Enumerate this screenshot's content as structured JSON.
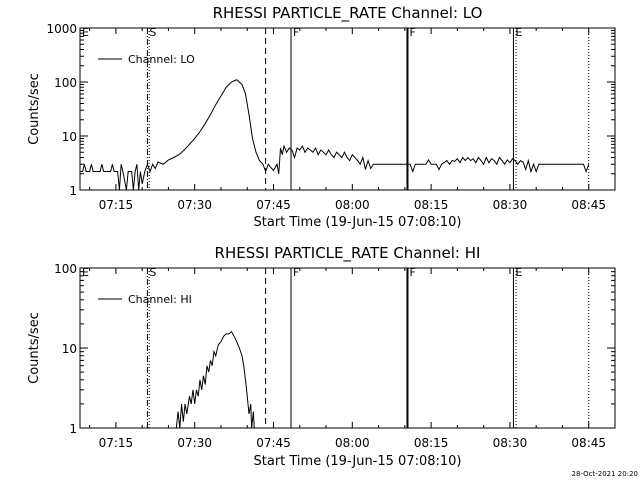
{
  "timestamp": "28-Oct-2021 20:20",
  "chart_data": [
    {
      "type": "line",
      "title": "RHESSI PARTICLE_RATE Channel: LO",
      "xlabel": "Start Time (19-Jun-15 07:08:10)",
      "ylabel": "Counts/sec",
      "yscale": "log",
      "xlim": [
        "07:08:10",
        "08:50:00"
      ],
      "ylim": [
        1,
        1000
      ],
      "xticks": [
        "07:15",
        "07:30",
        "07:45",
        "08:00",
        "08:15",
        "08:30",
        "08:45"
      ],
      "yticks": [
        "1",
        "10",
        "100",
        "1000"
      ],
      "legend": {
        "position": "top-left",
        "entries": [
          "Channel: LO"
        ]
      },
      "flag_markers": [
        {
          "label": "E",
          "time": "07:08:10",
          "style": "none"
        },
        {
          "label": "S",
          "time": "07:21:00",
          "style": "dash-dot"
        },
        {
          "label": "",
          "time": "07:21:20",
          "style": "dotted"
        },
        {
          "label": "",
          "time": "07:43:30",
          "style": "dashed"
        },
        {
          "label": "F",
          "time": "07:48:20",
          "style": "solid"
        },
        {
          "label": "F",
          "time": "08:10:30",
          "style": "solid-thick"
        },
        {
          "label": "E",
          "time": "08:30:40",
          "style": "solid-thin"
        },
        {
          "label": "",
          "time": "08:31:10",
          "style": "dotted"
        },
        {
          "label": "",
          "time": "08:45:00",
          "style": "dotted"
        }
      ],
      "series": [
        {
          "name": "Channel: LO",
          "points": [
            [
              "07:08:10",
              2.2
            ],
            [
              "07:08:40",
              2.2
            ],
            [
              "07:09:00",
              3
            ],
            [
              "07:09:20",
              2.2
            ],
            [
              "07:10:00",
              2.2
            ],
            [
              "07:10:20",
              3
            ],
            [
              "07:10:40",
              2.2
            ],
            [
              "07:11:30",
              2.2
            ],
            [
              "07:12:00",
              2.2
            ],
            [
              "07:12:20",
              3
            ],
            [
              "07:12:40",
              2.2
            ],
            [
              "07:13:30",
              2.2
            ],
            [
              "07:14:00",
              2.2
            ],
            [
              "07:14:20",
              3
            ],
            [
              "07:14:40",
              2.2
            ],
            [
              "07:15:20",
              2.2
            ],
            [
              "07:15:40",
              1
            ],
            [
              "07:16:00",
              3
            ],
            [
              "07:16:20",
              2.2
            ],
            [
              "07:17:00",
              1
            ],
            [
              "07:17:20",
              2.2
            ],
            [
              "07:18:00",
              2.2
            ],
            [
              "07:18:20",
              1
            ],
            [
              "07:18:40",
              2.2
            ],
            [
              "07:19:00",
              3
            ],
            [
              "07:19:20",
              1
            ],
            [
              "07:19:40",
              2.2
            ],
            [
              "07:20:00",
              1.3
            ],
            [
              "07:20:30",
              2.2
            ],
            [
              "07:21:00",
              3
            ],
            [
              "07:21:30",
              2.2
            ],
            [
              "07:22:00",
              3
            ],
            [
              "07:22:30",
              2.5
            ],
            [
              "07:23:00",
              3.3
            ],
            [
              "07:24:00",
              3
            ],
            [
              "07:25:00",
              3.6
            ],
            [
              "07:26:00",
              4
            ],
            [
              "07:27:00",
              4.5
            ],
            [
              "07:28:00",
              5.5
            ],
            [
              "07:29:00",
              7
            ],
            [
              "07:30:00",
              9
            ],
            [
              "07:31:00",
              12
            ],
            [
              "07:32:00",
              17
            ],
            [
              "07:33:00",
              25
            ],
            [
              "07:34:00",
              38
            ],
            [
              "07:35:00",
              55
            ],
            [
              "07:36:00",
              80
            ],
            [
              "07:37:00",
              100
            ],
            [
              "07:38:00",
              110
            ],
            [
              "07:39:00",
              90
            ],
            [
              "07:39:40",
              60
            ],
            [
              "07:40:20",
              25
            ],
            [
              "07:41:00",
              9
            ],
            [
              "07:41:40",
              5
            ],
            [
              "07:42:20",
              3.5
            ],
            [
              "07:43:00",
              3
            ],
            [
              "07:43:30",
              2.2
            ],
            [
              "07:44:00",
              3
            ],
            [
              "07:44:30",
              2.6
            ],
            [
              "07:45:00",
              2.3
            ],
            [
              "07:45:40",
              3
            ],
            [
              "07:46:00",
              2
            ],
            [
              "07:46:20",
              6
            ],
            [
              "07:46:40",
              4.5
            ],
            [
              "07:47:00",
              6.5
            ],
            [
              "07:47:30",
              5
            ],
            [
              "07:48:00",
              6
            ],
            [
              "07:48:30",
              5.5
            ],
            [
              "07:49:00",
              4
            ],
            [
              "07:49:30",
              6
            ],
            [
              "07:50:00",
              5.5
            ],
            [
              "07:50:30",
              6.5
            ],
            [
              "07:51:00",
              5
            ],
            [
              "07:51:30",
              6
            ],
            [
              "07:52:00",
              5.5
            ],
            [
              "07:52:30",
              5
            ],
            [
              "07:53:00",
              6
            ],
            [
              "07:53:30",
              4.5
            ],
            [
              "07:54:00",
              5.5
            ],
            [
              "07:54:30",
              5
            ],
            [
              "07:55:00",
              4.5
            ],
            [
              "07:55:30",
              5.5
            ],
            [
              "07:56:00",
              4.5
            ],
            [
              "07:56:30",
              4
            ],
            [
              "07:57:00",
              5
            ],
            [
              "07:57:30",
              4.5
            ],
            [
              "07:58:00",
              4
            ],
            [
              "07:58:30",
              5
            ],
            [
              "07:59:00",
              4
            ],
            [
              "07:59:30",
              3.5
            ],
            [
              "08:00:00",
              4.5
            ],
            [
              "08:00:30",
              4
            ],
            [
              "08:01:00",
              3.5
            ],
            [
              "08:01:30",
              3
            ],
            [
              "08:02:00",
              4
            ],
            [
              "08:02:30",
              2.4
            ],
            [
              "08:03:00",
              3.5
            ],
            [
              "08:03:30",
              2.5
            ],
            [
              "08:04:00",
              3
            ],
            [
              "08:05:00",
              3
            ],
            [
              "08:06:00",
              3
            ],
            [
              "08:07:00",
              3
            ],
            [
              "08:08:00",
              3
            ],
            [
              "08:09:00",
              3
            ],
            [
              "08:10:00",
              3
            ],
            [
              "08:11:00",
              3
            ],
            [
              "08:11:30",
              2.2
            ],
            [
              "08:12:00",
              3
            ],
            [
              "08:13:00",
              3
            ],
            [
              "08:14:00",
              3
            ],
            [
              "08:14:30",
              3.6
            ],
            [
              "08:15:00",
              3
            ],
            [
              "08:16:00",
              3
            ],
            [
              "08:16:30",
              2.4
            ],
            [
              "08:17:00",
              3
            ],
            [
              "08:18:00",
              3.5
            ],
            [
              "08:18:30",
              3
            ],
            [
              "08:19:00",
              3.5
            ],
            [
              "08:19:30",
              3.4
            ],
            [
              "08:20:00",
              3.8
            ],
            [
              "08:20:30",
              3.2
            ],
            [
              "08:21:00",
              4
            ],
            [
              "08:21:30",
              3.5
            ],
            [
              "08:22:00",
              4
            ],
            [
              "08:22:30",
              3.5
            ],
            [
              "08:23:00",
              3.8
            ],
            [
              "08:23:30",
              3.2
            ],
            [
              "08:24:00",
              4
            ],
            [
              "08:24:30",
              3.5
            ],
            [
              "08:25:00",
              3
            ],
            [
              "08:25:30",
              4
            ],
            [
              "08:26:00",
              3.2
            ],
            [
              "08:26:30",
              3.8
            ],
            [
              "08:27:00",
              3.5
            ],
            [
              "08:27:30",
              3
            ],
            [
              "08:28:00",
              4
            ],
            [
              "08:28:30",
              3.5
            ],
            [
              "08:29:00",
              3
            ],
            [
              "08:29:30",
              3.6
            ],
            [
              "08:30:00",
              3.2
            ],
            [
              "08:30:30",
              3.8
            ],
            [
              "08:31:00",
              3.5
            ],
            [
              "08:31:30",
              3
            ],
            [
              "08:32:00",
              3.5
            ],
            [
              "08:32:30",
              3.3
            ],
            [
              "08:33:00",
              2.4
            ],
            [
              "08:33:30",
              3.5
            ],
            [
              "08:34:00",
              2.2
            ],
            [
              "08:34:30",
              3
            ],
            [
              "08:35:00",
              2.2
            ],
            [
              "08:35:30",
              3
            ],
            [
              "08:36:00",
              3
            ],
            [
              "08:37:00",
              3
            ],
            [
              "08:38:00",
              3
            ],
            [
              "08:39:00",
              3
            ],
            [
              "08:40:00",
              3
            ],
            [
              "08:41:00",
              3
            ],
            [
              "08:42:00",
              3
            ],
            [
              "08:43:00",
              3
            ],
            [
              "08:44:00",
              3
            ],
            [
              "08:44:30",
              2.2
            ],
            [
              "08:45:00",
              3
            ]
          ]
        }
      ]
    },
    {
      "type": "line",
      "title": "RHESSI PARTICLE_RATE Channel: HI",
      "xlabel": "Start Time (19-Jun-15 07:08:10)",
      "ylabel": "Counts/sec",
      "yscale": "log",
      "xlim": [
        "07:08:10",
        "08:50:00"
      ],
      "ylim": [
        1,
        100
      ],
      "xticks": [
        "07:15",
        "07:30",
        "07:45",
        "08:00",
        "08:15",
        "08:30",
        "08:45"
      ],
      "yticks": [
        "1",
        "10",
        "100"
      ],
      "legend": {
        "position": "top-left",
        "entries": [
          "Channel: HI"
        ]
      },
      "flag_markers": [
        {
          "label": "E",
          "time": "07:08:10",
          "style": "none"
        },
        {
          "label": "S",
          "time": "07:21:00",
          "style": "dash-dot"
        },
        {
          "label": "",
          "time": "07:21:20",
          "style": "dotted"
        },
        {
          "label": "",
          "time": "07:43:30",
          "style": "dashed"
        },
        {
          "label": "F",
          "time": "07:48:20",
          "style": "solid"
        },
        {
          "label": "F",
          "time": "08:10:30",
          "style": "solid-thick"
        },
        {
          "label": "E",
          "time": "08:30:40",
          "style": "solid-thin"
        },
        {
          "label": "",
          "time": "08:31:10",
          "style": "dotted"
        },
        {
          "label": "",
          "time": "08:45:00",
          "style": "dotted"
        }
      ],
      "series": [
        {
          "name": "Channel: HI",
          "points": [
            [
              "07:26:30",
              1
            ],
            [
              "07:26:50",
              1.6
            ],
            [
              "07:27:10",
              1
            ],
            [
              "07:27:30",
              2
            ],
            [
              "07:27:50",
              1.2
            ],
            [
              "07:28:10",
              2
            ],
            [
              "07:28:30",
              1.5
            ],
            [
              "07:29:00",
              2.5
            ],
            [
              "07:29:20",
              2
            ],
            [
              "07:29:40",
              3
            ],
            [
              "07:30:00",
              2
            ],
            [
              "07:30:20",
              3
            ],
            [
              "07:30:40",
              2.5
            ],
            [
              "07:31:00",
              4
            ],
            [
              "07:31:20",
              3
            ],
            [
              "07:31:40",
              4.5
            ],
            [
              "07:32:00",
              3.5
            ],
            [
              "07:32:20",
              6
            ],
            [
              "07:32:40",
              5
            ],
            [
              "07:33:00",
              7
            ],
            [
              "07:33:20",
              6
            ],
            [
              "07:33:40",
              9
            ],
            [
              "07:34:00",
              8
            ],
            [
              "07:34:30",
              11
            ],
            [
              "07:35:00",
              12
            ],
            [
              "07:35:30",
              14
            ],
            [
              "07:36:00",
              15
            ],
            [
              "07:36:30",
              15
            ],
            [
              "07:37:00",
              16
            ],
            [
              "07:37:30",
              14
            ],
            [
              "07:38:00",
              12
            ],
            [
              "07:38:30",
              10
            ],
            [
              "07:39:00",
              8
            ],
            [
              "07:39:20",
              6
            ],
            [
              "07:39:40",
              4
            ],
            [
              "07:40:00",
              2.5
            ],
            [
              "07:40:20",
              1.5
            ],
            [
              "07:40:40",
              2
            ],
            [
              "07:40:50",
              1
            ],
            [
              "07:41:10",
              1.6
            ],
            [
              "07:41:20",
              1
            ]
          ]
        }
      ]
    }
  ]
}
